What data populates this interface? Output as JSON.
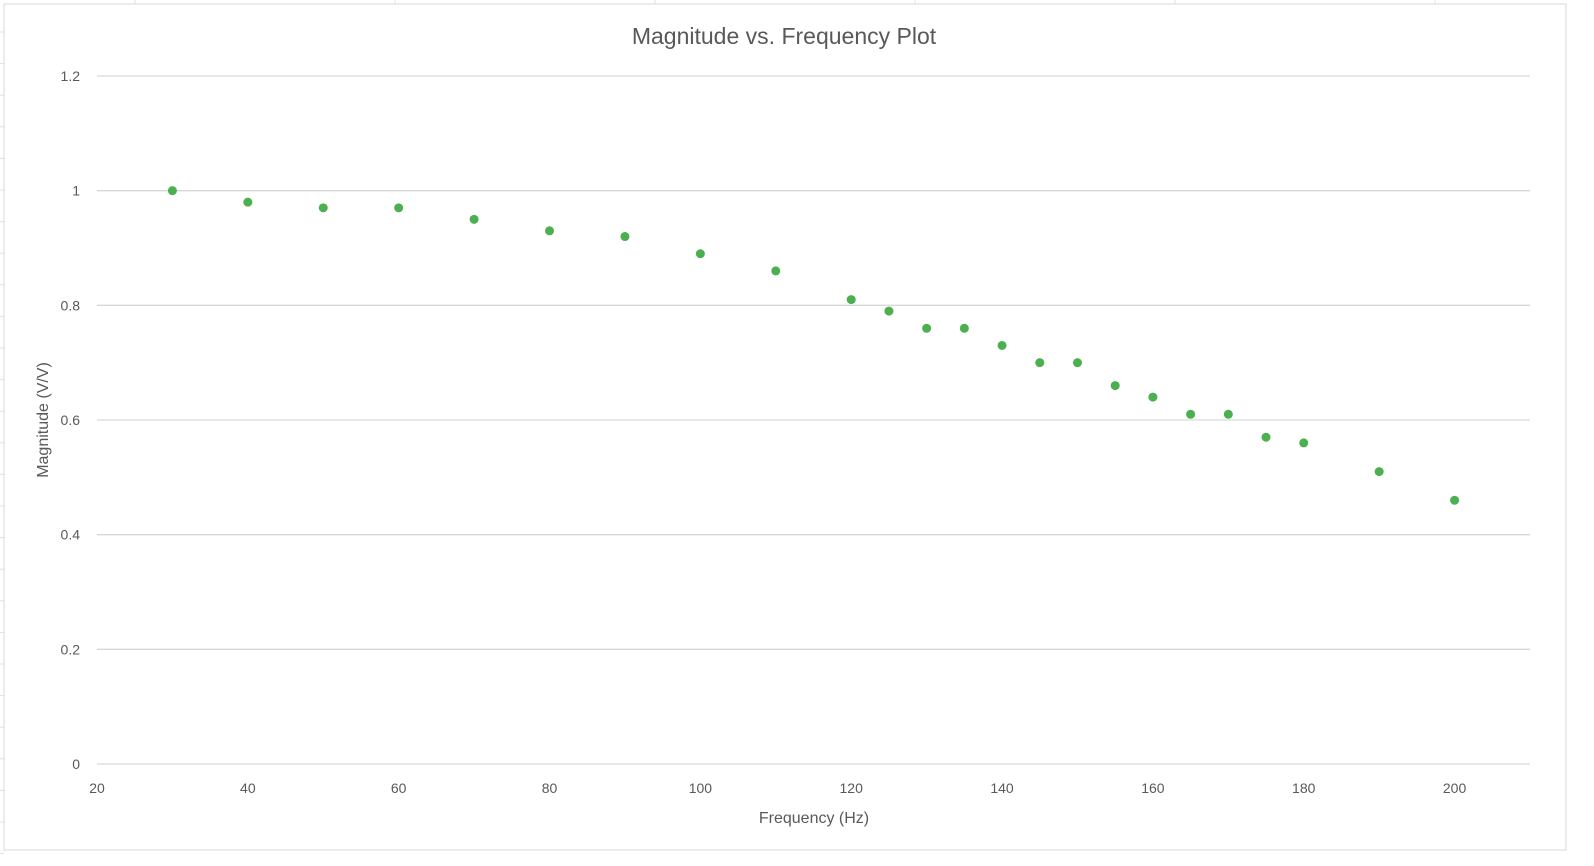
{
  "chart_data": {
    "type": "scatter",
    "title": "Magnitude vs. Frequency Plot",
    "xlabel": "Frequency (Hz)",
    "ylabel": "Magnitude (V/V)",
    "xlim": [
      20,
      210
    ],
    "ylim": [
      0,
      1.2
    ],
    "xticks": [
      20,
      40,
      60,
      80,
      100,
      120,
      140,
      160,
      180,
      200
    ],
    "yticks": [
      0,
      0.2,
      0.4,
      0.6,
      0.8,
      1,
      1.2
    ],
    "grid": "horizontal",
    "legend": "none",
    "color": "#4CAF50",
    "x": [
      30,
      40,
      50,
      60,
      70,
      80,
      90,
      100,
      110,
      120,
      125,
      130,
      135,
      140,
      145,
      150,
      155,
      160,
      165,
      170,
      175,
      180,
      190,
      200
    ],
    "y": [
      1.0,
      0.98,
      0.97,
      0.97,
      0.95,
      0.93,
      0.92,
      0.89,
      0.86,
      0.81,
      0.79,
      0.76,
      0.76,
      0.73,
      0.7,
      0.7,
      0.66,
      0.64,
      0.61,
      0.61,
      0.57,
      0.56,
      0.51,
      0.46
    ]
  }
}
